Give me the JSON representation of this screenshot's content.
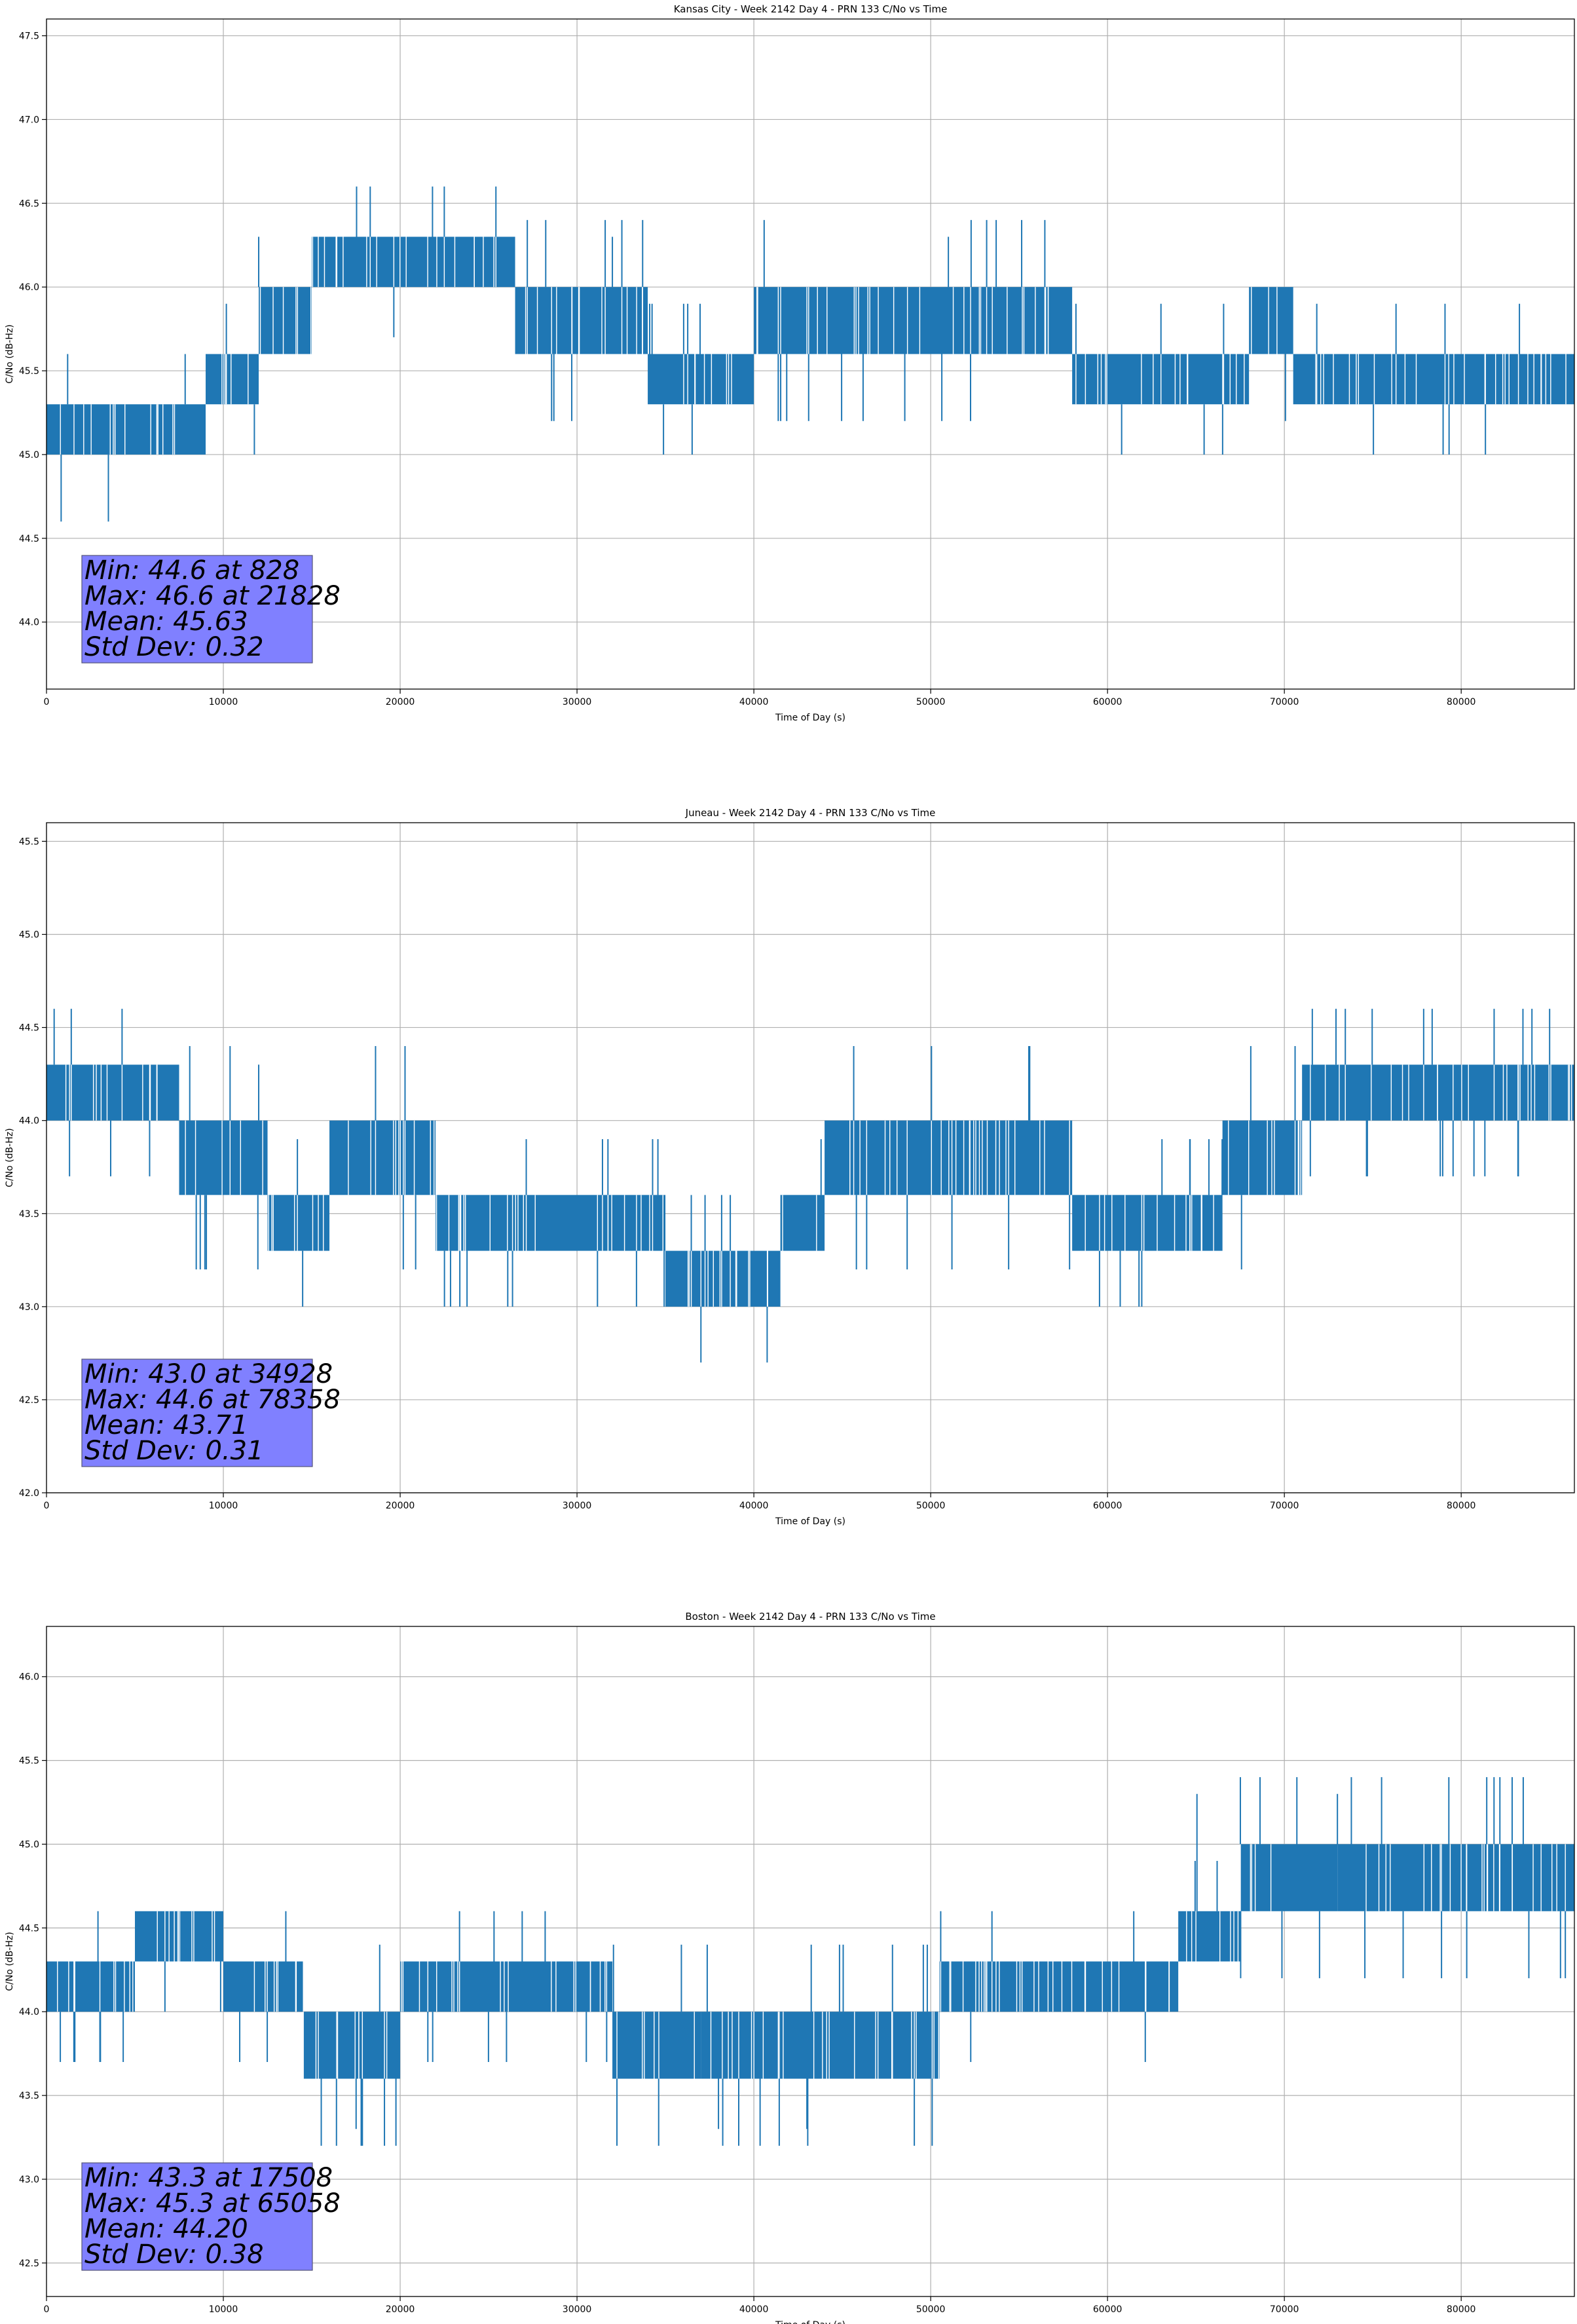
{
  "chart_data": [
    {
      "type": "line",
      "title": "Kansas City - Week 2142 Day 4 - PRN 133 C/No vs Time",
      "xlabel": "Time of Day (s)",
      "ylabel": "C/No (dB-Hz)",
      "xlim": [
        0,
        86400
      ],
      "ylim": [
        43.6,
        47.6
      ],
      "grid": true,
      "line_color": "#1f77b4",
      "xticks": [
        0,
        10000,
        20000,
        30000,
        40000,
        50000,
        60000,
        70000,
        80000
      ],
      "yticks": [
        44.0,
        44.5,
        45.0,
        45.5,
        46.0,
        46.5,
        47.0,
        47.5
      ],
      "yticks_labels": [
        "44.0",
        "44.5",
        "45.0",
        "45.5",
        "46.0",
        "46.5",
        "47.0",
        "47.5"
      ],
      "series": [
        {
          "name": "C/No",
          "segments": [
            {
              "x": [
                0,
                9000
              ],
              "band": [
                45.0,
                45.3
              ]
            },
            {
              "x": [
                9000,
                12000
              ],
              "band": [
                45.3,
                45.6
              ]
            },
            {
              "x": [
                12000,
                15000
              ],
              "band": [
                45.6,
                46.0
              ]
            },
            {
              "x": [
                15000,
                26500
              ],
              "band": [
                46.0,
                46.3
              ]
            },
            {
              "x": [
                26500,
                34000
              ],
              "band": [
                45.6,
                46.0
              ]
            },
            {
              "x": [
                34000,
                40000
              ],
              "band": [
                45.3,
                45.6
              ]
            },
            {
              "x": [
                40000,
                58000
              ],
              "band": [
                45.6,
                46.0
              ]
            },
            {
              "x": [
                58000,
                68000
              ],
              "band": [
                45.3,
                45.6
              ]
            },
            {
              "x": [
                68000,
                70500
              ],
              "band": [
                45.6,
                46.0
              ]
            },
            {
              "x": [
                70500,
                86400
              ],
              "band": [
                45.3,
                45.6
              ]
            }
          ],
          "spikes": [
            {
              "x": 828,
              "y": 44.6
            },
            {
              "x": 3500,
              "y": 44.6
            },
            {
              "x": 21828,
              "y": 46.6
            },
            {
              "x": 12000,
              "y": 46.3
            },
            {
              "x": 32000,
              "y": 46.3
            },
            {
              "x": 51000,
              "y": 46.3
            }
          ]
        }
      ],
      "annotation": {
        "lines": [
          "Min: 44.6 at 828",
          "Max: 46.6 at 21828",
          "Mean: 45.63",
          "Std Dev: 0.32"
        ],
        "background": "#8080ff",
        "placement": "bottom-left"
      }
    },
    {
      "type": "line",
      "title": "Juneau - Week 2142 Day 4 - PRN 133 C/No vs Time",
      "xlabel": "Time of Day (s)",
      "ylabel": "C/No (dB-Hz)",
      "xlim": [
        0,
        86400
      ],
      "ylim": [
        42.0,
        45.6
      ],
      "grid": true,
      "line_color": "#1f77b4",
      "xticks": [
        0,
        10000,
        20000,
        30000,
        40000,
        50000,
        60000,
        70000,
        80000
      ],
      "yticks": [
        42.0,
        42.5,
        43.0,
        43.5,
        44.0,
        44.5,
        45.0,
        45.5
      ],
      "yticks_labels": [
        "42.0",
        "42.5",
        "43.0",
        "43.5",
        "44.0",
        "44.5",
        "45.0",
        "45.5"
      ],
      "series": [
        {
          "name": "C/No",
          "segments": [
            {
              "x": [
                0,
                7500
              ],
              "band": [
                44.0,
                44.3
              ]
            },
            {
              "x": [
                7500,
                12500
              ],
              "band": [
                43.6,
                44.0
              ]
            },
            {
              "x": [
                12500,
                16000
              ],
              "band": [
                43.3,
                43.6
              ]
            },
            {
              "x": [
                16000,
                22000
              ],
              "band": [
                43.6,
                44.0
              ]
            },
            {
              "x": [
                22000,
                35000
              ],
              "band": [
                43.3,
                43.6
              ]
            },
            {
              "x": [
                35000,
                41500
              ],
              "band": [
                43.0,
                43.3
              ]
            },
            {
              "x": [
                41500,
                44000
              ],
              "band": [
                43.3,
                43.6
              ]
            },
            {
              "x": [
                44000,
                58000
              ],
              "band": [
                43.6,
                44.0
              ]
            },
            {
              "x": [
                58000,
                66500
              ],
              "band": [
                43.3,
                43.6
              ]
            },
            {
              "x": [
                66500,
                71000
              ],
              "band": [
                43.6,
                44.0
              ]
            },
            {
              "x": [
                71000,
                86400
              ],
              "band": [
                44.0,
                44.3
              ]
            }
          ],
          "spikes": [
            {
              "x": 12000,
              "y": 44.3
            },
            {
              "x": 34928,
              "y": 43.0
            },
            {
              "x": 78358,
              "y": 44.6
            },
            {
              "x": 84000,
              "y": 44.6
            },
            {
              "x": 85000,
              "y": 44.6
            }
          ]
        }
      ],
      "annotation": {
        "lines": [
          "Min: 43.0 at 34928",
          "Max: 44.6 at 78358",
          "Mean: 43.71",
          "Std Dev: 0.31"
        ],
        "background": "#8080ff",
        "placement": "bottom-left"
      }
    },
    {
      "type": "line",
      "title": "Boston - Week 2142 Day 4 - PRN 133 C/No vs Time",
      "xlabel": "Time of Day (s)",
      "ylabel": "C/No (dB-Hz)",
      "xlim": [
        0,
        86400
      ],
      "ylim": [
        42.3,
        46.3
      ],
      "grid": true,
      "line_color": "#1f77b4",
      "xticks": [
        0,
        10000,
        20000,
        30000,
        40000,
        50000,
        60000,
        70000,
        80000
      ],
      "yticks": [
        42.5,
        43.0,
        43.5,
        44.0,
        44.5,
        45.0,
        45.5,
        46.0
      ],
      "yticks_labels": [
        "42.5",
        "43.0",
        "43.5",
        "44.0",
        "44.5",
        "45.0",
        "45.5",
        "46.0"
      ],
      "series": [
        {
          "name": "C/No",
          "segments": [
            {
              "x": [
                0,
                5000
              ],
              "band": [
                44.0,
                44.3
              ]
            },
            {
              "x": [
                5000,
                10000
              ],
              "band": [
                44.3,
                44.6
              ]
            },
            {
              "x": [
                10000,
                14500
              ],
              "band": [
                44.0,
                44.3
              ]
            },
            {
              "x": [
                14500,
                20000
              ],
              "band": [
                43.6,
                44.0
              ]
            },
            {
              "x": [
                20000,
                32000
              ],
              "band": [
                44.0,
                44.3
              ]
            },
            {
              "x": [
                32000,
                37000
              ],
              "band": [
                43.6,
                44.0
              ]
            },
            {
              "x": [
                37000,
                50500
              ],
              "band": [
                43.6,
                44.0
              ]
            },
            {
              "x": [
                50500,
                64000
              ],
              "band": [
                44.0,
                44.3
              ]
            },
            {
              "x": [
                64000,
                67500
              ],
              "band": [
                44.3,
                44.6
              ]
            },
            {
              "x": [
                67500,
                73000
              ],
              "band": [
                44.6,
                45.0
              ]
            },
            {
              "x": [
                73000,
                86400
              ],
              "band": [
                44.6,
                45.0
              ]
            }
          ],
          "spikes": [
            {
              "x": 17508,
              "y": 43.3
            },
            {
              "x": 65058,
              "y": 45.3
            },
            {
              "x": 73000,
              "y": 45.3
            },
            {
              "x": 38000,
              "y": 43.3
            },
            {
              "x": 43000,
              "y": 43.3
            }
          ]
        }
      ],
      "annotation": {
        "lines": [
          "Min: 43.3 at 17508",
          "Max: 45.3 at 65058",
          "Mean: 44.20",
          "Std Dev: 0.38"
        ],
        "background": "#8080ff",
        "placement": "bottom-left"
      }
    }
  ]
}
